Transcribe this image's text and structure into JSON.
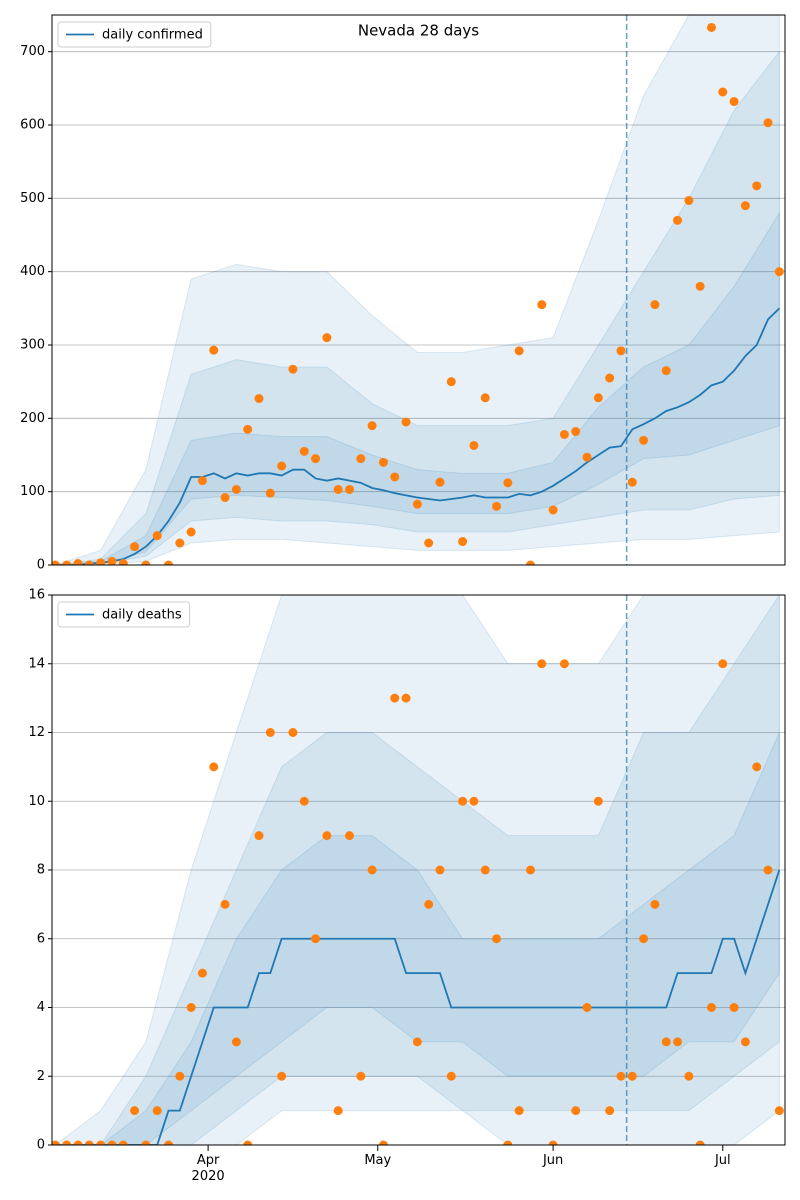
{
  "chart_data": [
    {
      "type": "line",
      "title": "Nevada 28 days",
      "legend": "upper left",
      "grid": "y",
      "xlim": [
        64.4,
        194
      ],
      "ylim": [
        0,
        750
      ],
      "yticks": [
        0,
        100,
        200,
        300,
        400,
        500,
        600,
        700
      ],
      "x": [
        65,
        67,
        69,
        71,
        73,
        75,
        77,
        79,
        81,
        83,
        85,
        87,
        89,
        91,
        93,
        95,
        97,
        99,
        101,
        103,
        105,
        107,
        109,
        111,
        113,
        115,
        117,
        119,
        121,
        123,
        125,
        127,
        129,
        131,
        133,
        135,
        137,
        139,
        141,
        143,
        145,
        147,
        149,
        151,
        153,
        155,
        157,
        159,
        161,
        163,
        165,
        167,
        169,
        171,
        173,
        175,
        177,
        179,
        181,
        183,
        185,
        187,
        189,
        191,
        193
      ],
      "series": [
        {
          "name": "daily confirmed",
          "color": "#1f77b4",
          "values": [
            0,
            0,
            0,
            2,
            3,
            5,
            8,
            15,
            25,
            40,
            60,
            85,
            120,
            120,
            125,
            118,
            125,
            122,
            125,
            125,
            122,
            130,
            130,
            118,
            115,
            118,
            115,
            112,
            105,
            102,
            98,
            95,
            92,
            90,
            88,
            90,
            92,
            95,
            92,
            92,
            92,
            97,
            95,
            100,
            108,
            118,
            128,
            140,
            150,
            160,
            162,
            185,
            192,
            200,
            210,
            215,
            222,
            232,
            245,
            250,
            265,
            285,
            300,
            335,
            350
          ]
        }
      ],
      "observed": {
        "color": "#ff7f0e",
        "values": [
          0,
          0,
          2,
          0,
          3,
          5,
          2,
          25,
          0,
          40,
          0,
          30,
          45,
          115,
          293,
          92,
          103,
          185,
          227,
          98,
          135,
          267,
          155,
          145,
          310,
          103,
          103,
          145,
          190,
          140,
          120,
          195,
          83,
          30,
          113,
          250,
          32,
          163,
          228,
          80,
          112,
          292,
          0,
          355,
          75,
          178,
          182,
          147,
          228,
          255,
          292,
          113,
          170,
          355,
          265,
          470,
          497,
          380,
          733,
          645,
          632,
          490,
          517,
          603,
          400
        ]
      },
      "bands": {
        "color": "#1f77b4",
        "x": [
          65,
          73,
          81,
          89,
          97,
          105,
          113,
          121,
          129,
          137,
          145,
          153,
          161,
          169,
          177,
          185,
          193
        ],
        "ranges": [
          {
            "lower": [
              0,
              0,
              5,
              30,
              35,
              35,
              30,
              25,
              20,
              20,
              20,
              25,
              30,
              35,
              35,
              40,
              45
            ],
            "upper": [
              0,
              20,
              130,
              390,
              410,
              400,
              400,
              340,
              290,
              290,
              300,
              310,
              470,
              640,
              750,
              750,
              750
            ]
          },
          {
            "lower": [
              0,
              1,
              12,
              60,
              65,
              60,
              60,
              55,
              45,
              45,
              45,
              55,
              65,
              75,
              75,
              90,
              95
            ],
            "upper": [
              0,
              8,
              70,
              260,
              280,
              270,
              270,
              220,
              190,
              190,
              190,
              200,
              300,
              400,
              500,
              620,
              700
            ]
          },
          {
            "lower": [
              0,
              2,
              18,
              90,
              95,
              92,
              88,
              80,
              70,
              70,
              70,
              80,
              110,
              145,
              150,
              170,
              190
            ],
            "upper": [
              0,
              5,
              40,
              170,
              180,
              175,
              175,
              150,
              130,
              125,
              125,
              140,
              215,
              270,
              300,
              380,
              480
            ]
          }
        ]
      },
      "vline": 166
    },
    {
      "type": "line",
      "legend": "upper left",
      "grid": "y",
      "xlim": [
        64.4,
        194
      ],
      "ylim": [
        0,
        16
      ],
      "yticks": [
        0,
        2,
        4,
        6,
        8,
        10,
        12,
        14,
        16
      ],
      "xticks": [
        {
          "value": 92,
          "label": "Apr\n2020"
        },
        {
          "value": 122,
          "label": "May"
        },
        {
          "value": 153,
          "label": "Jun"
        },
        {
          "value": 183,
          "label": "Jul"
        }
      ],
      "x": [
        65,
        67,
        69,
        71,
        73,
        75,
        77,
        79,
        81,
        83,
        85,
        87,
        89,
        91,
        93,
        95,
        97,
        99,
        101,
        103,
        105,
        107,
        109,
        111,
        113,
        115,
        117,
        119,
        121,
        123,
        125,
        127,
        129,
        131,
        133,
        135,
        137,
        139,
        141,
        143,
        145,
        147,
        149,
        151,
        153,
        155,
        157,
        159,
        161,
        163,
        165,
        167,
        169,
        171,
        173,
        175,
        177,
        179,
        181,
        183,
        185,
        187,
        189,
        191,
        193
      ],
      "series": [
        {
          "name": "daily deaths",
          "color": "#1f77b4",
          "values": [
            0,
            0,
            0,
            0,
            0,
            0,
            0,
            0,
            0,
            0,
            1,
            1,
            2,
            3,
            4,
            4,
            4,
            4,
            5,
            5,
            6,
            6,
            6,
            6,
            6,
            6,
            6,
            6,
            6,
            6,
            6,
            5,
            5,
            5,
            5,
            4,
            4,
            4,
            4,
            4,
            4,
            4,
            4,
            4,
            4,
            4,
            4,
            4,
            4,
            4,
            4,
            4,
            4,
            4,
            4,
            5,
            5,
            5,
            5,
            6,
            6,
            5,
            6,
            7,
            8
          ]
        }
      ],
      "observed": {
        "color": "#ff7f0e",
        "values": [
          0,
          0,
          0,
          0,
          0,
          0,
          0,
          1,
          0,
          1,
          0,
          2,
          4,
          5,
          11,
          7,
          3,
          0,
          9,
          12,
          2,
          12,
          10,
          6,
          9,
          1,
          9,
          2,
          8,
          0,
          13,
          13,
          3,
          7,
          8,
          2,
          10,
          10,
          8,
          6,
          0,
          1,
          8,
          14,
          0,
          14,
          1,
          4,
          10,
          1,
          2,
          2,
          6,
          7,
          3,
          3,
          2,
          0,
          4,
          14,
          4,
          3,
          11,
          8,
          1
        ]
      },
      "bands": {
        "color": "#1f77b4",
        "x": [
          65,
          73,
          81,
          89,
          97,
          105,
          113,
          121,
          129,
          137,
          145,
          153,
          161,
          169,
          177,
          185,
          193
        ],
        "ranges": [
          {
            "lower": [
              0,
              0,
              0,
              0,
              0,
              1,
              1,
              1,
              1,
              1,
              0,
              0,
              0,
              0,
              0,
              0,
              1
            ],
            "upper": [
              0,
              1,
              3,
              8,
              12,
              16,
              16,
              16,
              16,
              16,
              14,
              14,
              14,
              16,
              16,
              16,
              16
            ]
          },
          {
            "lower": [
              0,
              0,
              0,
              0,
              1,
              2,
              2,
              2,
              2,
              1,
              1,
              1,
              1,
              1,
              1,
              2,
              3
            ],
            "upper": [
              0,
              0,
              2,
              5,
              8,
              11,
              12,
              12,
              11,
              10,
              9,
              9,
              9,
              12,
              12,
              14,
              16
            ]
          },
          {
            "lower": [
              0,
              0,
              0,
              1,
              2,
              3,
              4,
              4,
              3,
              3,
              2,
              2,
              2,
              2,
              3,
              3,
              5
            ],
            "upper": [
              0,
              0,
              1,
              3,
              6,
              8,
              9,
              9,
              8,
              6,
              6,
              6,
              6,
              7,
              8,
              9,
              12
            ]
          }
        ]
      },
      "vline": 166
    }
  ]
}
